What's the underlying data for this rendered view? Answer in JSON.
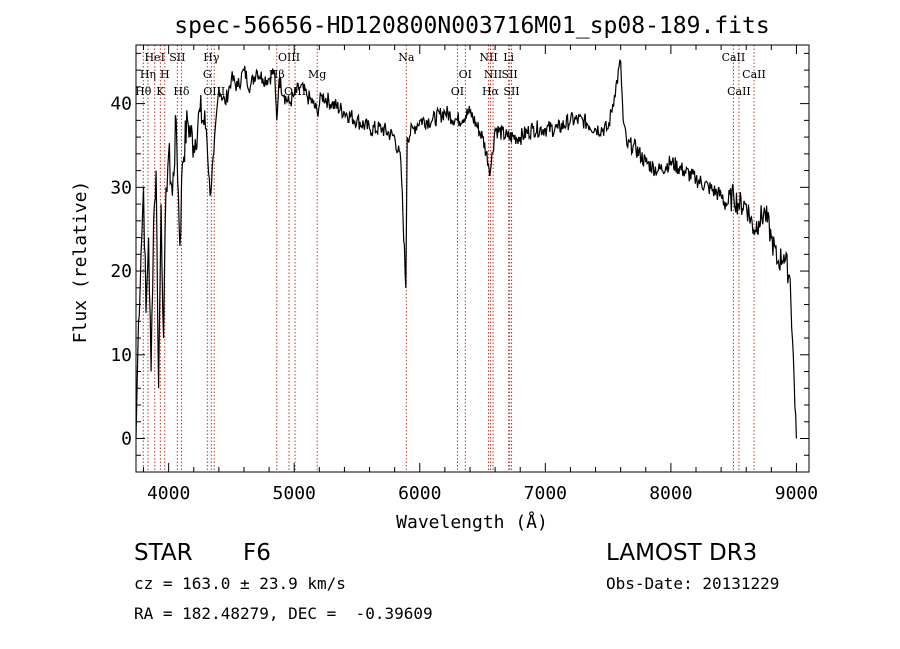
{
  "chart_data": {
    "type": "line",
    "title": "spec-56656-HD120800N003716M01_sp08-189.fits",
    "xlabel": "Wavelength (Å)",
    "ylabel": "Flux (relative)",
    "xlim": [
      3740,
      9100
    ],
    "ylim": [
      -4,
      47
    ],
    "x_ticks": [
      4000,
      5000,
      6000,
      7000,
      8000,
      9000
    ],
    "y_ticks": [
      0,
      10,
      20,
      30,
      40
    ],
    "series": [
      {
        "name": "flux",
        "color": "#000000",
        "x": [
          3740,
          3760,
          3780,
          3800,
          3820,
          3840,
          3860,
          3880,
          3900,
          3920,
          3940,
          3960,
          3980,
          4000,
          4030,
          4060,
          4090,
          4110,
          4150,
          4200,
          4250,
          4300,
          4330,
          4360,
          4400,
          4450,
          4500,
          4550,
          4600,
          4650,
          4700,
          4750,
          4800,
          4840,
          4861,
          4880,
          4920,
          4960,
          5000,
          5050,
          5100,
          5150,
          5183,
          5220,
          5300,
          5400,
          5500,
          5600,
          5700,
          5800,
          5850,
          5889,
          5900,
          5950,
          6000,
          6100,
          6200,
          6300,
          6400,
          6500,
          6563,
          6600,
          6700,
          6800,
          6900,
          7000,
          7100,
          7200,
          7300,
          7400,
          7500,
          7550,
          7600,
          7620,
          7650,
          7700,
          7800,
          7900,
          8000,
          8100,
          8200,
          8300,
          8400,
          8450,
          8500,
          8540,
          8600,
          8660,
          8700,
          8750,
          8800,
          8850,
          8900,
          8950,
          9000
        ],
        "y": [
          0,
          14,
          22,
          30,
          15,
          24,
          8,
          26,
          32,
          6,
          28,
          12,
          30,
          34,
          29,
          38,
          23,
          33,
          38,
          35,
          39,
          37,
          29,
          34,
          42,
          40,
          43,
          42,
          44,
          42,
          44,
          43,
          43,
          44,
          38,
          43,
          41,
          40,
          41,
          42,
          41,
          40,
          39,
          41,
          40,
          39,
          38,
          37,
          37,
          36,
          33,
          18,
          36,
          37,
          38,
          38,
          39,
          38,
          39,
          36,
          32,
          37,
          36,
          36,
          37,
          37,
          37,
          38,
          38,
          37,
          37,
          41,
          45,
          38,
          35,
          35,
          33,
          32,
          33,
          32,
          31,
          30,
          29,
          28,
          29,
          28,
          28,
          25,
          26,
          27,
          24,
          21,
          22,
          19,
          0
        ]
      }
    ],
    "spectral_lines": [
      {
        "label": "Hθ",
        "x": 3798,
        "row": 3
      },
      {
        "label": "Hη",
        "x": 3835,
        "row": 2
      },
      {
        "label": "HeI",
        "x": 3889,
        "row": 1
      },
      {
        "label": "K",
        "x": 3934,
        "row": 3
      },
      {
        "label": "H",
        "x": 3969,
        "row": 2
      },
      {
        "label": "SII",
        "x": 4069,
        "row": 1
      },
      {
        "label": "Hδ",
        "x": 4102,
        "row": 3
      },
      {
        "label": "Hγ",
        "x": 4340,
        "row": 1
      },
      {
        "label": "G",
        "x": 4308,
        "row": 2
      },
      {
        "label": "OIII",
        "x": 4363,
        "row": 3
      },
      {
        "label": "OIII",
        "x": 4959,
        "row": 1
      },
      {
        "label": "Hβ",
        "x": 4861,
        "row": 2
      },
      {
        "label": "OIII",
        "x": 5007,
        "row": 3
      },
      {
        "label": "Mg",
        "x": 5183,
        "row": 2
      },
      {
        "label": "Na",
        "x": 5893,
        "row": 1
      },
      {
        "label": "OI",
        "x": 6300,
        "row": 3
      },
      {
        "label": "OI",
        "x": 6363,
        "row": 2
      },
      {
        "label": "NII",
        "x": 6548,
        "row": 1
      },
      {
        "label": "NII",
        "x": 6584,
        "row": 2
      },
      {
        "label": "Hα",
        "x": 6563,
        "row": 3
      },
      {
        "label": "Li",
        "x": 6708,
        "row": 1
      },
      {
        "label": "SII",
        "x": 6716,
        "row": 2
      },
      {
        "label": "SII",
        "x": 6731,
        "row": 3
      },
      {
        "label": "CaII",
        "x": 8498,
        "row": 1
      },
      {
        "label": "CaII",
        "x": 8542,
        "row": 3
      },
      {
        "label": "CaII",
        "x": 8662,
        "row": 2
      }
    ],
    "line_color": "#c0392b",
    "grid": false
  },
  "info": {
    "object_class": "STAR",
    "subclass": "F6",
    "survey": "LAMOST DR3",
    "redshift": "cz = 163.0 ± 23.9 km/s",
    "obs_date": "Obs-Date: 20131229",
    "coords": "RA = 182.48279, DEC =  -0.39609"
  }
}
